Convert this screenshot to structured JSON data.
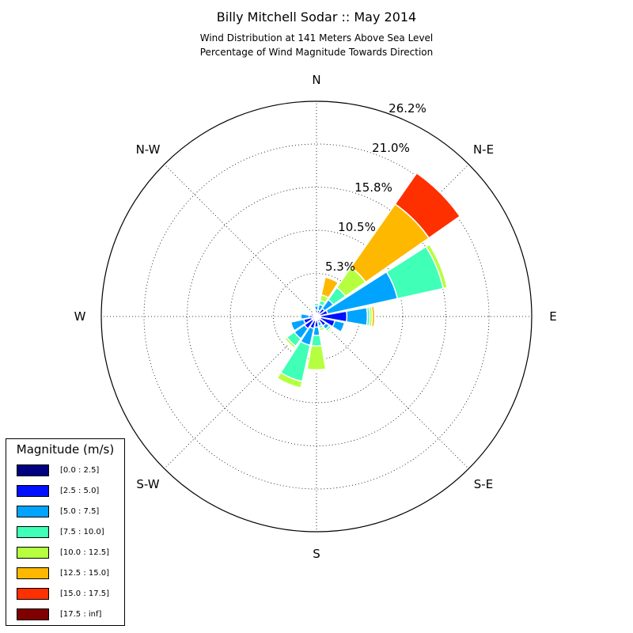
{
  "title": "Billy Mitchell Sodar :: May 2014",
  "subtitle_lines": [
    "Wind Distribution at 141 Meters Above Sea Level",
    "Percentage of Wind Magnitude Towards Direction"
  ],
  "legend": {
    "title": "Magnitude (m/s)",
    "placement": "bottom-left",
    "items": [
      {
        "label": "[0.0 : 2.5]",
        "color": "#000080"
      },
      {
        "label": "[2.5 : 5.0]",
        "color": "#0010ff"
      },
      {
        "label": "[5.0 : 7.5]",
        "color": "#00a4ff"
      },
      {
        "label": "[7.5 : 10.0]",
        "color": "#40ffb6"
      },
      {
        "label": "[10.0 : 12.5]",
        "color": "#b6ff40"
      },
      {
        "label": "[12.5 : 15.0]",
        "color": "#ffb800"
      },
      {
        "label": "[15.0 : 17.5]",
        "color": "#ff3000"
      },
      {
        "label": "[17.5 : inf]",
        "color": "#800000"
      }
    ]
  },
  "chart_data": {
    "type": "windrose",
    "direction_labels": [
      "N",
      "N-E",
      "E",
      "S-E",
      "S",
      "S-W",
      "W",
      "N-W"
    ],
    "radial_tick_labels": [
      "5.3%",
      "10.5%",
      "15.8%",
      "21.0%",
      "26.2%"
    ],
    "radial_ticks": [
      5.25,
      10.5,
      15.75,
      21.0,
      26.2
    ],
    "rmax": 26.2,
    "grid": true,
    "sector_width_deg": 22.5,
    "bins": [
      "[0.0 : 2.5]",
      "[2.5 : 5.0]",
      "[5.0 : 7.5]",
      "[7.5 : 10.0]",
      "[10.0 : 12.5]",
      "[12.5 : 15.0]",
      "[15.0 : 17.5]",
      "[17.5 : inf]"
    ],
    "sectors": [
      {
        "direction": 0,
        "values": [
          0.3,
          0.5,
          0.5,
          0.3,
          0.0,
          0.0,
          0.0,
          0.0
        ]
      },
      {
        "direction": 22.5,
        "values": [
          0.3,
          0.5,
          0.7,
          0.5,
          0.7,
          2.2,
          0.0,
          0.0
        ]
      },
      {
        "direction": 45,
        "values": [
          0.4,
          0.8,
          1.3,
          1.8,
          3.0,
          9.4,
          4.6,
          0.0
        ]
      },
      {
        "direction": 67.5,
        "values": [
          0.4,
          1.0,
          8.7,
          5.7,
          0.5,
          0.0,
          0.0,
          0.0
        ]
      },
      {
        "direction": 90,
        "values": [
          0.5,
          3.2,
          2.5,
          0.3,
          0.3,
          0.3,
          0.0,
          0.0
        ]
      },
      {
        "direction": 112.5,
        "values": [
          0.5,
          1.8,
          1.2,
          0.0,
          0.0,
          0.0,
          0.0,
          0.0
        ]
      },
      {
        "direction": 135,
        "values": [
          0.5,
          0.9,
          0.5,
          0.3,
          0.2,
          0.0,
          0.0,
          0.0
        ]
      },
      {
        "direction": 157.5,
        "values": [
          0.3,
          0.4,
          0.5,
          0.3,
          0.3,
          0.0,
          0.0,
          0.0
        ]
      },
      {
        "direction": 180,
        "values": [
          0.5,
          0.8,
          1.0,
          1.3,
          2.9,
          0.1,
          0.1,
          0.0
        ]
      },
      {
        "direction": 202.5,
        "values": [
          0.5,
          1.0,
          2.1,
          4.5,
          0.8,
          0.0,
          0.0,
          0.0
        ]
      },
      {
        "direction": 225,
        "values": [
          0.6,
          1.2,
          1.5,
          1.1,
          0.3,
          0.0,
          0.0,
          0.0
        ]
      },
      {
        "direction": 247.5,
        "values": [
          0.6,
          1.0,
          1.6,
          0.0,
          0.0,
          0.0,
          0.0,
          0.0
        ]
      },
      {
        "direction": 270,
        "values": [
          0.3,
          0.6,
          1.0,
          0.0,
          0.0,
          0.0,
          0.0,
          0.0
        ]
      },
      {
        "direction": 292.5,
        "values": [
          0.3,
          0.4,
          0.0,
          0.0,
          0.0,
          0.0,
          0.0,
          0.0
        ]
      },
      {
        "direction": 315,
        "values": [
          0.2,
          0.3,
          0.0,
          0.0,
          0.0,
          0.0,
          0.0,
          0.0
        ]
      },
      {
        "direction": 337.5,
        "values": [
          0.2,
          0.3,
          0.0,
          0.0,
          0.0,
          0.0,
          0.0,
          0.0
        ]
      }
    ]
  }
}
